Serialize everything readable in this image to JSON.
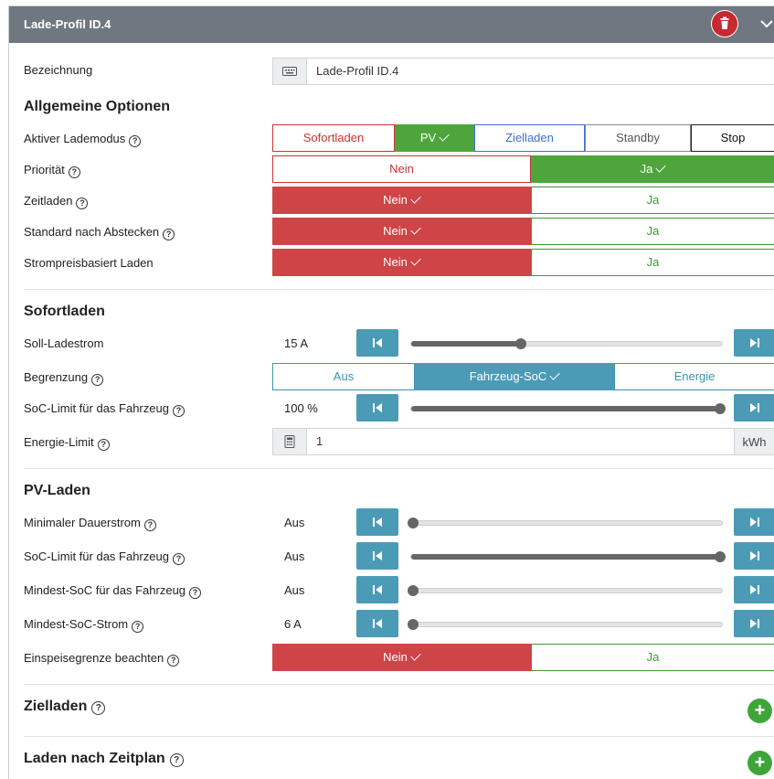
{
  "header": {
    "title": "Lade-Profil ID.4",
    "trash_icon": "trash-icon",
    "collapse_icon": "chevron-down-icon"
  },
  "bezeichnung": {
    "label": "Bezeichnung",
    "value": "Lade-Profil ID.4"
  },
  "allgemein": {
    "heading": "Allgemeine Optionen",
    "lademodus": {
      "label": "Aktiver Lademodus",
      "options": [
        "Sofortladen",
        "PV",
        "Zielladen",
        "Standby",
        "Stop"
      ],
      "selected": "PV"
    },
    "prioritaet": {
      "label": "Priorität",
      "no": "Nein",
      "yes": "Ja",
      "selected": "Ja"
    },
    "zeitladen": {
      "label": "Zeitladen",
      "no": "Nein",
      "yes": "Ja",
      "selected": "Nein"
    },
    "standard": {
      "label": "Standard nach Abstecken",
      "no": "Nein",
      "yes": "Ja",
      "selected": "Nein"
    },
    "strompreis": {
      "label": "Strompreisbasiert Laden",
      "no": "Nein",
      "yes": "Ja",
      "selected": "Nein"
    }
  },
  "sofortladen": {
    "heading": "Sofortladen",
    "soll": {
      "label": "Soll-Ladestrom",
      "value": "15 A",
      "level": 0.35
    },
    "begrenzung": {
      "label": "Begrenzung",
      "options": [
        "Aus",
        "Fahrzeug-SoC",
        "Energie"
      ],
      "selected": "Fahrzeug-SoC"
    },
    "soc_limit": {
      "label": "SoC-Limit für das Fahrzeug",
      "value": "100 %",
      "level": 1.0
    },
    "energie": {
      "label": "Energie-Limit",
      "value": "1",
      "unit": "kWh"
    }
  },
  "pvladen": {
    "heading": "PV-Laden",
    "dauerstrom": {
      "label": "Minimaler Dauerstrom",
      "value": "Aus",
      "level": 0.0
    },
    "soc_limit": {
      "label": "SoC-Limit für das Fahrzeug",
      "value": "Aus",
      "level": 1.0
    },
    "mindest_soc": {
      "label": "Mindest-SoC für das Fahrzeug",
      "value": "Aus",
      "level": 0.0
    },
    "mindest_strom": {
      "label": "Mindest-SoC-Strom",
      "value": "6 A",
      "level": 0.0
    },
    "einspeise": {
      "label": "Einspeisegrenze beachten",
      "no": "Nein",
      "yes": "Ja",
      "selected": "Nein"
    }
  },
  "zielladen": {
    "heading": "Zielladen"
  },
  "zeitplan": {
    "heading": "Laden nach Zeitplan"
  },
  "help_glyph": "?",
  "plus_glyph": "+"
}
